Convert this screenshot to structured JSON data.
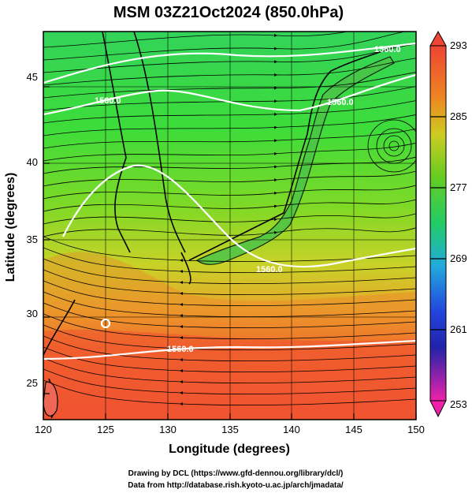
{
  "title": "MSM 03Z21Oct2024 (850.0hPa)",
  "map": {
    "xlabel": "Longitude (degrees)",
    "ylabel": "Latitude  (degrees)",
    "xticks": [
      "120",
      "125",
      "130",
      "135",
      "140",
      "145",
      "150"
    ],
    "yticks": [
      "25",
      "30",
      "35",
      "40",
      "45"
    ],
    "lon_range": [
      120,
      150
    ],
    "lat_range": [
      22.4,
      47.6
    ],
    "contour_labels": [
      "1560.0",
      "1560.0",
      "1560.0",
      "1560.0",
      "1560.0"
    ],
    "field": "temperature (shaded), wind streamlines, geopotential height contours"
  },
  "colorbar": {
    "ticks": [
      "293",
      "285",
      "277",
      "269",
      "261",
      "253"
    ],
    "range": [
      253,
      293
    ],
    "colors": [
      "#ee22aa",
      "#2222cc",
      "#22aadd",
      "#22cc66",
      "#66cc22",
      "#cccc22",
      "#ee8822",
      "#ee4433"
    ]
  },
  "credits": {
    "line1": "Drawing by DCL (https://www.gfd-dennou.org/library/dcl/)",
    "line2": "Data from http://database.rish.kyoto-u.ac.jp/arch/jmadata/"
  }
}
